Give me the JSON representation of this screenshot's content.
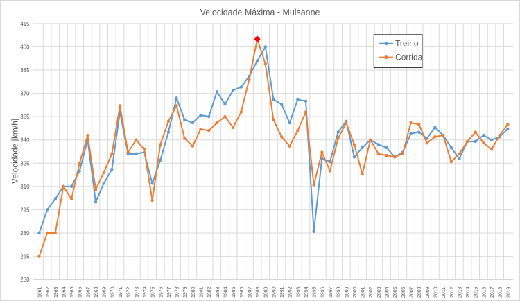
{
  "chart_data": {
    "type": "line",
    "title": "Velocidade Máxima - Mulsanne",
    "xlabel": "",
    "ylabel": "Velocidade [km/h]",
    "ylim": [
      250,
      415
    ],
    "yticks": [
      250,
      265,
      280,
      295,
      310,
      325,
      340,
      355,
      370,
      385,
      400,
      415
    ],
    "grid": true,
    "legend_position": "top-right",
    "categories": [
      "1961",
      "1962",
      "1963",
      "1964",
      "1965",
      "1966",
      "1967",
      "1968",
      "1969",
      "1970",
      "1971",
      "1972",
      "1973",
      "1974",
      "1975",
      "1976",
      "1977",
      "1978",
      "1979",
      "1980",
      "1981",
      "1982",
      "1983",
      "1984",
      "1985",
      "1986",
      "1987",
      "1988",
      "1989",
      "1990",
      "1991",
      "1992",
      "1993",
      "1994",
      "1995",
      "1996",
      "1997",
      "1998",
      "1999",
      "2000",
      "2001",
      "2002",
      "2003",
      "2004",
      "2005",
      "2006",
      "2007",
      "2008",
      "2009",
      "2010",
      "2011",
      "2012",
      "2013",
      "2014",
      "2015",
      "2016",
      "2017",
      "2018",
      "2019"
    ],
    "series": [
      {
        "name": "Treino",
        "color": "#5b9bd5",
        "values": [
          280,
          295,
          302,
          310,
          310,
          320,
          340,
          300,
          312,
          321,
          358,
          331,
          331,
          332,
          312,
          327,
          345,
          367,
          353,
          351,
          356,
          355,
          371,
          363,
          372,
          374,
          381,
          391,
          400,
          366,
          363,
          351,
          366,
          365,
          281,
          328,
          326,
          345,
          352,
          329,
          335,
          340,
          337,
          335,
          329,
          332,
          344,
          345,
          341,
          348,
          343,
          335,
          328,
          339,
          339,
          343,
          340,
          342,
          347
        ]
      },
      {
        "name": "Corrida",
        "color": "#ed7d31",
        "values": [
          265,
          280,
          280,
          310,
          302,
          325,
          343,
          308,
          319,
          331,
          362,
          332,
          340,
          334,
          301,
          337,
          352,
          362,
          341,
          336,
          347,
          346,
          351,
          355,
          348,
          358,
          379,
          405,
          389,
          353,
          342,
          336,
          346,
          358,
          311,
          332,
          320,
          341,
          351,
          337,
          318,
          340,
          331,
          330,
          329,
          331,
          351,
          350,
          338,
          342,
          343,
          326,
          331,
          339,
          345,
          338,
          334,
          343,
          350
        ]
      }
    ],
    "highlight": {
      "series": "Corrida",
      "category": "1988",
      "value": 405,
      "color": "#ff0000",
      "marker": "diamond"
    }
  }
}
